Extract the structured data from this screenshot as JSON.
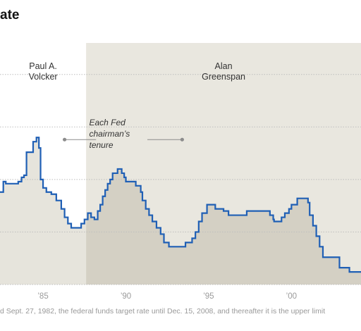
{
  "title": "ate",
  "footnote": "d Sept. 27, 1982, the federal funds target rate until Dec. 15, 2008, and thereafter it is the upper limit",
  "colors": {
    "line": "#1f5fb5",
    "volcker_area": "#e6e4dc",
    "greenspan_band": "#e9e7df",
    "greenspan_area": "#d4d0c4",
    "grid": "#bdbdbd",
    "annotation": "#8c8c8c",
    "tick_label": "#9a9a9a"
  },
  "chart_data": {
    "type": "area",
    "xlim": [
      1982.4,
      2004.2
    ],
    "ylim": [
      0,
      11.5
    ],
    "y_grid_lines": [
      0,
      2.5,
      5,
      7.5,
      10
    ],
    "x_ticks": [
      1985,
      1990,
      1995,
      2000
    ],
    "x_tick_labels": [
      "’85",
      "’90",
      "’95",
      "’00"
    ],
    "tenures": [
      {
        "label_lines": [
          "Paul A.",
          "Volcker"
        ],
        "start": 1979.6,
        "end": 1987.6
      },
      {
        "label_lines": [
          "Alan",
          "Greenspan"
        ],
        "start": 1987.6,
        "end": 2006.1
      }
    ],
    "annotation_lines": [
      "Each Fed",
      "chairman’s",
      "tenure"
    ],
    "series": [
      {
        "steps": [
          [
            1982.4,
            4.4
          ],
          [
            1982.6,
            4.9
          ],
          [
            1982.75,
            4.8
          ],
          [
            1983.5,
            4.9
          ],
          [
            1983.7,
            5.1
          ],
          [
            1983.85,
            5.2
          ],
          [
            1984.0,
            6.3
          ],
          [
            1984.4,
            6.8
          ],
          [
            1984.6,
            7.0
          ],
          [
            1984.75,
            6.5
          ],
          [
            1984.85,
            5.0
          ],
          [
            1985.0,
            4.6
          ],
          [
            1985.2,
            4.4
          ],
          [
            1985.5,
            4.3
          ],
          [
            1985.8,
            4.0
          ],
          [
            1986.1,
            3.6
          ],
          [
            1986.3,
            3.2
          ],
          [
            1986.5,
            2.9
          ],
          [
            1986.7,
            2.7
          ],
          [
            1987.3,
            2.9
          ],
          [
            1987.5,
            3.1
          ],
          [
            1987.7,
            3.4
          ],
          [
            1987.9,
            3.2
          ],
          [
            1988.1,
            3.1
          ],
          [
            1988.3,
            3.5
          ],
          [
            1988.45,
            3.8
          ],
          [
            1988.6,
            4.2
          ],
          [
            1988.75,
            4.5
          ],
          [
            1988.9,
            4.8
          ],
          [
            1989.05,
            5.0
          ],
          [
            1989.2,
            5.3
          ],
          [
            1989.5,
            5.5
          ],
          [
            1989.75,
            5.3
          ],
          [
            1989.9,
            5.1
          ],
          [
            1990.0,
            4.9
          ],
          [
            1990.6,
            4.7
          ],
          [
            1990.9,
            4.4
          ],
          [
            1991.0,
            4.0
          ],
          [
            1991.2,
            3.6
          ],
          [
            1991.4,
            3.3
          ],
          [
            1991.6,
            3.0
          ],
          [
            1991.85,
            2.7
          ],
          [
            1992.1,
            2.4
          ],
          [
            1992.3,
            2.0
          ],
          [
            1992.6,
            1.8
          ],
          [
            1993.6,
            2.0
          ],
          [
            1994.0,
            2.2
          ],
          [
            1994.2,
            2.5
          ],
          [
            1994.4,
            3.0
          ],
          [
            1994.6,
            3.4
          ],
          [
            1994.9,
            3.8
          ],
          [
            1995.4,
            3.6
          ],
          [
            1995.9,
            3.5
          ],
          [
            1996.2,
            3.3
          ],
          [
            1997.3,
            3.5
          ],
          [
            1998.7,
            3.3
          ],
          [
            1998.9,
            3.1
          ],
          [
            1998.95,
            3.0
          ],
          [
            1999.4,
            3.2
          ],
          [
            1999.6,
            3.4
          ],
          [
            1999.85,
            3.6
          ],
          [
            2000.0,
            3.8
          ],
          [
            2000.35,
            4.1
          ],
          [
            2001.0,
            3.9
          ],
          [
            2001.1,
            3.3
          ],
          [
            2001.3,
            2.8
          ],
          [
            2001.5,
            2.3
          ],
          [
            2001.7,
            1.8
          ],
          [
            2001.9,
            1.3
          ],
          [
            2002.9,
            0.8
          ],
          [
            2003.5,
            0.6
          ],
          [
            2004.2,
            0.6
          ]
        ]
      }
    ]
  }
}
